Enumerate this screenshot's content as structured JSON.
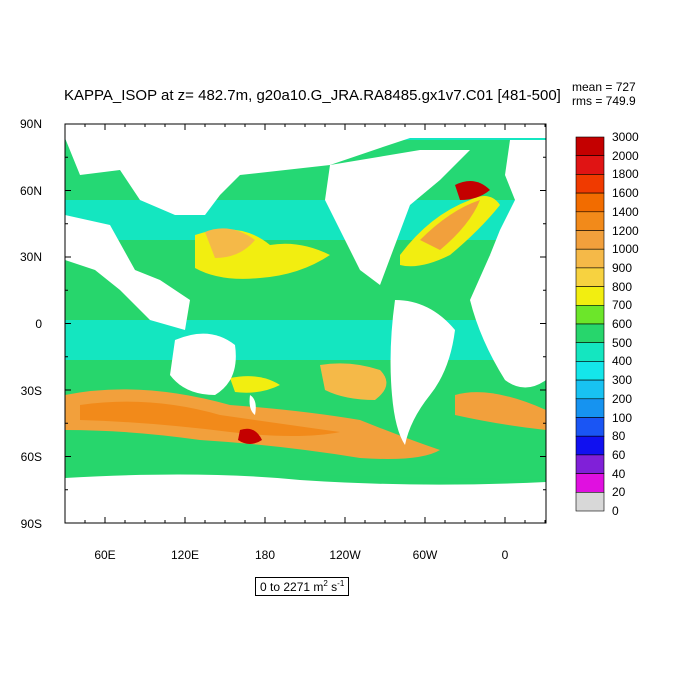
{
  "title": "KAPPA_ISOP at z= 482.7m, g20a10.G_JRA.RA8485.gx1v7.C01 [481-500]",
  "stats": {
    "mean": "mean = 727",
    "rms": "rms = 749.9"
  },
  "lat_labels": [
    "90N",
    "60N",
    "30N",
    "0",
    "30S",
    "60S",
    "90S"
  ],
  "lon_labels": [
    "60E",
    "120E",
    "180",
    "120W",
    "60W",
    "0"
  ],
  "range": {
    "text": "0 to 2271 m",
    "sup1": "2",
    "mid": " s",
    "sup2": "-1"
  },
  "legend": {
    "labels": [
      "3000",
      "2000",
      "1800",
      "1600",
      "1400",
      "1200",
      "1000",
      "900",
      "800",
      "700",
      "600",
      "500",
      "400",
      "300",
      "200",
      "100",
      "80",
      "60",
      "40",
      "20",
      "0"
    ],
    "colors": [
      "#c40000",
      "#e01414",
      "#f03a00",
      "#f26c00",
      "#f28a1a",
      "#f2a03c",
      "#f5b948",
      "#f7d240",
      "#f2ee10",
      "#6ce62a",
      "#27d66c",
      "#14e6c0",
      "#14e6ea",
      "#18c2f2",
      "#1693f0",
      "#1a55f4",
      "#1010f0",
      "#8020d8",
      "#e010e0",
      "#d8d8d8",
      "#6e6e6e"
    ]
  },
  "colors": {
    "land": "#ffffff",
    "ocean_base": "#14e6c0"
  }
}
